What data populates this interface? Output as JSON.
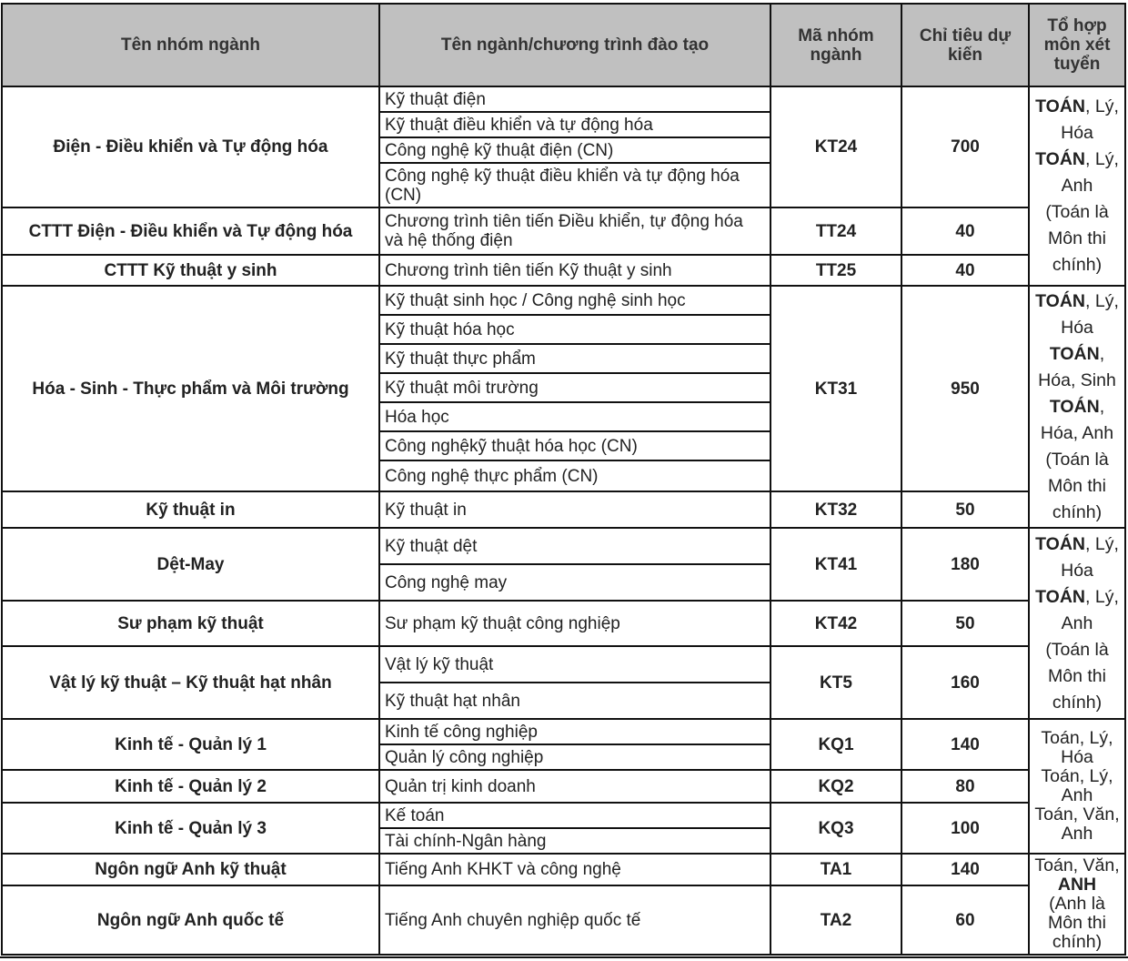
{
  "headers": [
    "Tên nhóm ngành",
    "Tên ngành/chương trình đào tạo",
    "Mã nhóm ngành",
    "Chỉ tiêu dự kiến",
    "Tổ hợp môn xét tuyển"
  ],
  "groups": [
    {
      "name": "Điện - Điều khiển và Tự động hóa",
      "code": "KT24",
      "quota": "700",
      "programs": [
        "Kỹ thuật điện",
        "Kỹ thuật điều khiển và tự động hóa",
        "Công nghệ kỹ thuật điện (CN)",
        "Công nghệ kỹ thuật điều khiển và tự động hóa (CN)"
      ]
    },
    {
      "name": "CTTT Điện - Điều khiển và Tự động hóa",
      "code": "TT24",
      "quota": "40",
      "programs": [
        "Chương trình tiên tiến Điều khiển, tự động hóa và hệ thống điện"
      ]
    },
    {
      "name": "CTTT Kỹ thuật y sinh",
      "code": "TT25",
      "quota": "40",
      "programs": [
        "Chương trình tiên tiến Kỹ thuật y sinh"
      ]
    },
    {
      "name": "Hóa - Sinh - Thực phẩm và Môi trường",
      "code": "KT31",
      "quota": "950",
      "programs": [
        "Kỹ thuật sinh học / Công nghệ sinh học",
        "Kỹ thuật hóa học",
        "Kỹ thuật thực phẩm",
        "Kỹ thuật môi trường",
        "Hóa học",
        "Công nghệkỹ thuật hóa học (CN)",
        "Công nghệ thực phẩm (CN)"
      ]
    },
    {
      "name": "Kỹ thuật in",
      "code": "KT32",
      "quota": "50",
      "programs": [
        "Kỹ thuật in"
      ]
    },
    {
      "name": "Dệt-May",
      "code": "KT41",
      "quota": "180",
      "programs": [
        "Kỹ thuật dệt",
        "Công nghệ may"
      ]
    },
    {
      "name": "Sư phạm kỹ thuật",
      "code": "KT42",
      "quota": "50",
      "programs": [
        "Sư phạm kỹ thuật công nghiệp"
      ]
    },
    {
      "name": "Vật lý kỹ thuật – Kỹ thuật hạt nhân",
      "code": "KT5",
      "quota": "160",
      "programs": [
        "Vật lý kỹ thuật",
        "Kỹ thuật hạt nhân"
      ]
    },
    {
      "name": "Kinh tế - Quản lý 1",
      "code": "KQ1",
      "quota": "140",
      "programs": [
        "Kinh tế công nghiệp",
        "Quản lý công nghiệp"
      ]
    },
    {
      "name": "Kinh tế - Quản lý 2",
      "code": "KQ2",
      "quota": "80",
      "programs": [
        "Quản trị kinh doanh"
      ]
    },
    {
      "name": "Kinh tế - Quản lý 3",
      "code": "KQ3",
      "quota": "100",
      "programs": [
        "Kế toán",
        "Tài chính-Ngân hàng"
      ]
    },
    {
      "name": "Ngôn ngữ Anh kỹ thuật",
      "code": "TA1",
      "quota": "140",
      "programs": [
        "Tiếng Anh KHKT và công nghệ"
      ]
    },
    {
      "name": "Ngôn ngữ Anh quốc tế",
      "code": "TA2",
      "quota": "60",
      "programs": [
        "Tiếng Anh chuyên nghiệp quốc tế"
      ]
    }
  ],
  "combos": [
    {
      "groups": [
        0,
        2
      ],
      "lines": [
        [
          {
            "t": "TOÁN",
            "b": true
          },
          {
            "t": ", Lý, Hóa"
          }
        ],
        [
          {
            "t": "TOÁN",
            "b": true
          },
          {
            "t": ", Lý, Anh"
          }
        ],
        [
          {
            "t": "(Toán là Môn thi chính)"
          }
        ]
      ]
    },
    {
      "groups": [
        3,
        4
      ],
      "lines": [
        [
          {
            "t": "TOÁN",
            "b": true
          },
          {
            "t": ", Lý, Hóa"
          }
        ],
        [
          {
            "t": "TOÁN",
            "b": true
          },
          {
            "t": ", Hóa, Sinh"
          }
        ],
        [
          {
            "t": "TOÁN",
            "b": true
          },
          {
            "t": ", Hóa, Anh"
          }
        ],
        [
          {
            "t": "(Toán là Môn thi chính)"
          }
        ]
      ]
    },
    {
      "groups": [
        5,
        7
      ],
      "lines": [
        [
          {
            "t": "TOÁN",
            "b": true
          },
          {
            "t": ", Lý, Hóa"
          }
        ],
        [
          {
            "t": "TOÁN",
            "b": true
          },
          {
            "t": ", Lý, Anh"
          }
        ],
        [
          {
            "t": "(Toán là Môn thi chính)"
          }
        ]
      ]
    },
    {
      "groups": [
        8,
        10
      ],
      "lines": [
        [
          {
            "t": "Toán, Lý, Hóa"
          }
        ],
        [
          {
            "t": "Toán, Lý, Anh"
          }
        ],
        [
          {
            "t": "Toán, Văn, Anh"
          }
        ]
      ]
    },
    {
      "groups": [
        11,
        12
      ],
      "lines": [
        [
          {
            "t": "Toán, Văn, "
          },
          {
            "t": "ANH",
            "b": true
          }
        ],
        [
          {
            "t": "(Anh là Môn thi chính)"
          }
        ]
      ]
    }
  ]
}
